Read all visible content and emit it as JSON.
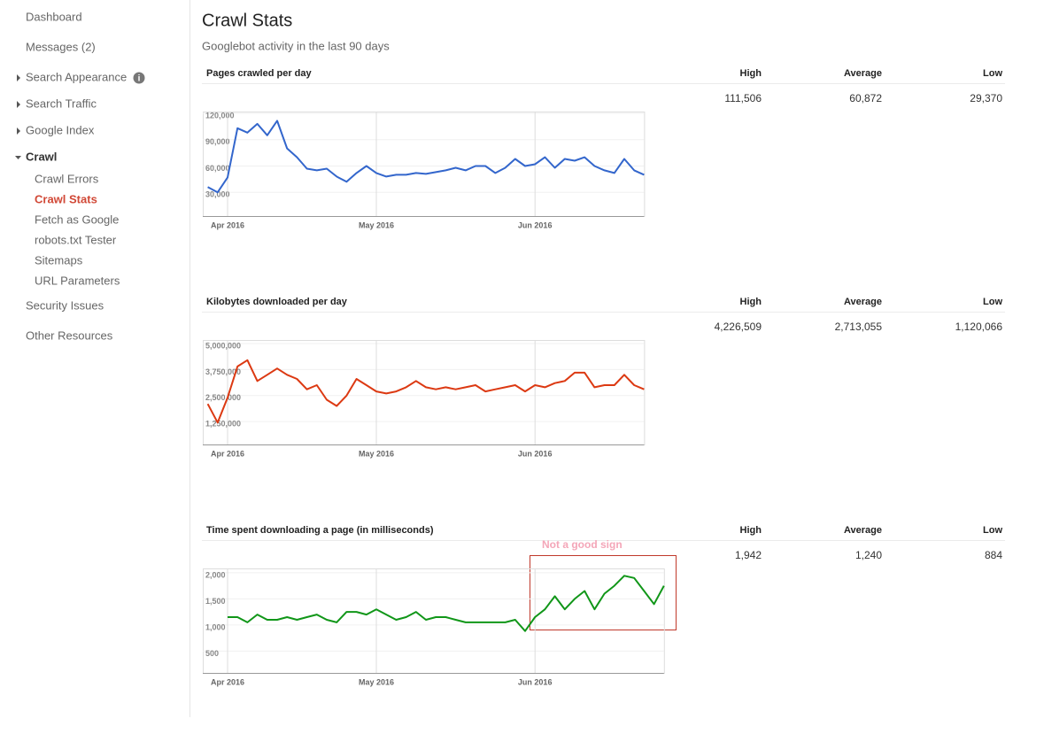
{
  "sidebar": {
    "items": [
      {
        "label": "Dashboard"
      },
      {
        "label": "Messages (2)"
      },
      {
        "label": "Search Appearance"
      },
      {
        "label": "Search Traffic"
      },
      {
        "label": "Google Index"
      },
      {
        "label": "Crawl",
        "children": [
          {
            "label": "Crawl Errors"
          },
          {
            "label": "Crawl Stats"
          },
          {
            "label": "Fetch as Google"
          },
          {
            "label": "robots.txt Tester"
          },
          {
            "label": "Sitemaps"
          },
          {
            "label": "URL Parameters"
          }
        ]
      },
      {
        "label": "Security Issues"
      },
      {
        "label": "Other Resources"
      }
    ]
  },
  "header": {
    "title": "Crawl Stats",
    "subtitle": "Googlebot activity in the last 90 days"
  },
  "chart_data": [
    {
      "type": "line",
      "title": "Pages crawled per day",
      "color": "#3366cc",
      "stats": {
        "labels": [
          "High",
          "Average",
          "Low"
        ],
        "values": [
          "111,506",
          "60,872",
          "29,370"
        ]
      },
      "categories": [
        null,
        null,
        "Apr 2016",
        null,
        null,
        null,
        null,
        null,
        null,
        null,
        null,
        null,
        null,
        null,
        null,
        null,
        null,
        "May 2016",
        null,
        null,
        null,
        null,
        null,
        null,
        null,
        null,
        null,
        null,
        null,
        null,
        null,
        null,
        null,
        "Jun 2016",
        null,
        null,
        null,
        null,
        null,
        null,
        null,
        null,
        null,
        null,
        null
      ],
      "values": [
        36000,
        30000,
        47000,
        103000,
        98000,
        108000,
        95000,
        111506,
        80000,
        70000,
        57000,
        55000,
        57000,
        48000,
        42000,
        52000,
        60000,
        52000,
        48000,
        50000,
        50000,
        52000,
        51000,
        53000,
        55000,
        58000,
        55000,
        60000,
        60000,
        52000,
        58000,
        68000,
        60000,
        62000,
        70000,
        58000,
        68000,
        66000,
        70000,
        60000,
        55000,
        52000,
        68000,
        55000,
        50000
      ],
      "ylim": [
        3000,
        122000
      ],
      "yticks": [
        {
          "value": 30000,
          "label": "30,000"
        },
        {
          "value": 60000,
          "label": "60,000"
        },
        {
          "value": 90000,
          "label": "90,000"
        },
        {
          "value": 120000,
          "label": "120,000"
        }
      ]
    },
    {
      "type": "line",
      "title": "Kilobytes downloaded per day",
      "color": "#dc3912",
      "stats": {
        "labels": [
          "High",
          "Average",
          "Low"
        ],
        "values": [
          "4,226,509",
          "2,713,055",
          "1,120,066"
        ]
      },
      "categories": [
        null,
        null,
        "Apr 2016",
        null,
        null,
        null,
        null,
        null,
        null,
        null,
        null,
        null,
        null,
        null,
        null,
        null,
        null,
        "May 2016",
        null,
        null,
        null,
        null,
        null,
        null,
        null,
        null,
        null,
        null,
        null,
        null,
        null,
        null,
        null,
        "Jun 2016",
        null,
        null,
        null,
        null,
        null,
        null,
        null,
        null,
        null,
        null,
        null
      ],
      "values": [
        2100000,
        1200000,
        2400000,
        3900000,
        4200000,
        3200000,
        3500000,
        3800000,
        3500000,
        3300000,
        2800000,
        3000000,
        2300000,
        2000000,
        2500000,
        3300000,
        3000000,
        2700000,
        2600000,
        2700000,
        2900000,
        3200000,
        2900000,
        2800000,
        2900000,
        2800000,
        2900000,
        3000000,
        2700000,
        2800000,
        2900000,
        3000000,
        2700000,
        3000000,
        2900000,
        3100000,
        3200000,
        3600000,
        3600000,
        2900000,
        3000000,
        3000000,
        3500000,
        3000000,
        2800000
      ],
      "ylim": [
        150000,
        5170000
      ],
      "yticks": [
        {
          "value": 1250000,
          "label": "1,250,000"
        },
        {
          "value": 2500000,
          "label": "2,500,000"
        },
        {
          "value": 3750000,
          "label": "3,750,000"
        },
        {
          "value": 5000000,
          "label": "5,000,000"
        }
      ]
    },
    {
      "type": "line",
      "title": "Time spent downloading a page (in milliseconds)",
      "color": "#109618",
      "annotation": "Not a good sign",
      "stats": {
        "labels": [
          "High",
          "Average",
          "Low"
        ],
        "values": [
          "1,942",
          "1,240",
          "884"
        ]
      },
      "categories": [
        null,
        null,
        "Apr 2016",
        null,
        null,
        null,
        null,
        null,
        null,
        null,
        null,
        null,
        null,
        null,
        null,
        null,
        null,
        "May 2016",
        null,
        null,
        null,
        null,
        null,
        null,
        null,
        null,
        null,
        null,
        null,
        null,
        null,
        null,
        null,
        "Jun 2016",
        null,
        null,
        null,
        null,
        null,
        null,
        null,
        null,
        null,
        null,
        null,
        null,
        null
      ],
      "values": [
        null,
        null,
        1150,
        1150,
        1050,
        1200,
        1100,
        1100,
        1150,
        1100,
        1150,
        1200,
        1100,
        1050,
        1250,
        1250,
        1200,
        1300,
        1200,
        1100,
        1150,
        1250,
        1100,
        1150,
        1150,
        1100,
        1050,
        1050,
        1050,
        1050,
        1050,
        1100,
        884,
        1150,
        1300,
        1550,
        1300,
        1500,
        1650,
        1300,
        1600,
        1750,
        1942,
        1900,
        1650,
        1400,
        1750
      ],
      "ylim": [
        83,
        2083
      ],
      "yticks": [
        500,
        {
          "value": 1000,
          "label": "1,000"
        },
        {
          "value": 1500,
          "label": "1,500"
        },
        {
          "value": 2000,
          "label": "2,000"
        }
      ]
    }
  ]
}
